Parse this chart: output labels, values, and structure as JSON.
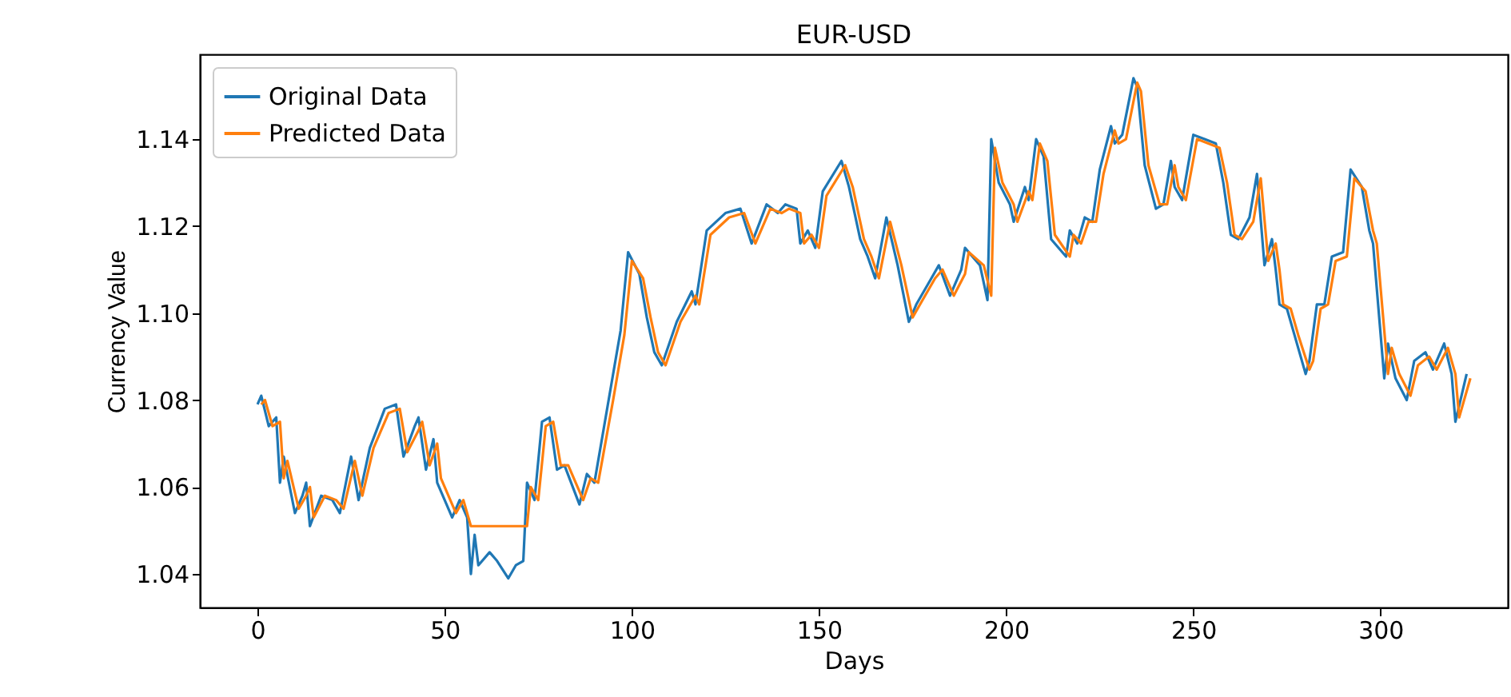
{
  "chart_data": {
    "type": "line",
    "title": "EUR-USD",
    "xlabel": "Days",
    "ylabel": "Currency Value",
    "xlim": [
      -15.4,
      334
    ],
    "ylim": [
      1.0323,
      1.1595
    ],
    "xticks": [
      0,
      50,
      100,
      150,
      200,
      250,
      300
    ],
    "yticks": [
      1.04,
      1.06,
      1.08,
      {
        "value": 1.1,
        "label": "1.10"
      },
      1.12,
      1.14
    ],
    "grid": false,
    "legend": "top left",
    "marker": "none",
    "line_style": "solid",
    "series": [
      {
        "name": "Original Data",
        "color": "#1f77b4",
        "x": [
          0,
          1,
          3,
          5,
          6,
          7,
          10,
          12,
          13,
          14,
          17,
          20,
          22,
          25,
          27,
          30,
          34,
          37,
          39,
          42,
          43,
          45,
          47,
          48,
          52,
          54,
          56,
          57,
          58,
          59,
          62,
          64,
          67,
          69,
          71,
          72,
          74,
          76,
          78,
          80,
          82,
          86,
          88,
          90,
          94,
          97,
          99,
          102,
          104,
          106,
          108,
          112,
          116,
          117,
          120,
          125,
          129,
          132,
          136,
          139,
          141,
          144,
          145,
          147,
          149,
          151,
          156,
          158,
          161,
          163,
          165,
          168,
          171,
          174,
          176,
          180,
          182,
          185,
          188,
          189,
          193,
          195,
          196,
          198,
          201,
          202,
          205,
          206,
          208,
          210,
          212,
          216,
          217,
          219,
          221,
          223,
          225,
          228,
          229,
          231,
          234,
          235,
          237,
          240,
          242,
          244,
          245,
          247,
          250,
          253,
          256,
          258,
          260,
          262,
          265,
          267,
          269,
          271,
          272,
          273,
          275,
          277,
          280,
          281,
          283,
          285,
          287,
          290,
          292,
          295,
          297,
          298,
          301,
          302,
          304,
          307,
          309,
          312,
          314,
          317,
          319,
          320,
          323
        ],
        "values": [
          1.079,
          1.081,
          1.074,
          1.076,
          1.061,
          1.067,
          1.054,
          1.058,
          1.061,
          1.051,
          1.058,
          1.057,
          1.054,
          1.067,
          1.057,
          1.069,
          1.078,
          1.079,
          1.067,
          1.074,
          1.076,
          1.064,
          1.071,
          1.061,
          1.053,
          1.057,
          1.053,
          1.04,
          1.049,
          1.042,
          1.045,
          1.043,
          1.039,
          1.042,
          1.043,
          1.061,
          1.057,
          1.075,
          1.076,
          1.064,
          1.065,
          1.056,
          1.063,
          1.061,
          1.081,
          1.096,
          1.114,
          1.109,
          1.099,
          1.091,
          1.088,
          1.098,
          1.105,
          1.102,
          1.119,
          1.123,
          1.124,
          1.116,
          1.125,
          1.123,
          1.125,
          1.124,
          1.116,
          1.119,
          1.115,
          1.128,
          1.135,
          1.129,
          1.117,
          1.113,
          1.108,
          1.122,
          1.111,
          1.098,
          1.102,
          1.108,
          1.111,
          1.104,
          1.11,
          1.115,
          1.111,
          1.103,
          1.14,
          1.13,
          1.125,
          1.121,
          1.129,
          1.126,
          1.14,
          1.136,
          1.117,
          1.113,
          1.119,
          1.116,
          1.122,
          1.121,
          1.133,
          1.143,
          1.139,
          1.141,
          1.154,
          1.152,
          1.134,
          1.124,
          1.125,
          1.135,
          1.129,
          1.126,
          1.141,
          1.14,
          1.139,
          1.13,
          1.118,
          1.117,
          1.122,
          1.132,
          1.111,
          1.117,
          1.11,
          1.102,
          1.101,
          1.095,
          1.086,
          1.089,
          1.102,
          1.102,
          1.113,
          1.114,
          1.133,
          1.129,
          1.119,
          1.116,
          1.085,
          1.093,
          1.085,
          1.08,
          1.089,
          1.091,
          1.087,
          1.093,
          1.086,
          1.075,
          1.086
        ]
      },
      {
        "name": "Predicted Data",
        "color": "#ff7f0e",
        "x": [
          1,
          2,
          4,
          6,
          7,
          8,
          11,
          13,
          14,
          15,
          18,
          21,
          23,
          26,
          28,
          31,
          35,
          38,
          40,
          43,
          44,
          46,
          48,
          49,
          53,
          55,
          57,
          72,
          73,
          75,
          77,
          79,
          81,
          83,
          87,
          89,
          91,
          95,
          98,
          100,
          103,
          105,
          107,
          109,
          113,
          117,
          118,
          121,
          126,
          130,
          133,
          137,
          140,
          142,
          145,
          146,
          148,
          150,
          152,
          157,
          159,
          162,
          164,
          166,
          169,
          172,
          175,
          177,
          181,
          183,
          186,
          189,
          190,
          194,
          196,
          197,
          199,
          202,
          203,
          206,
          207,
          209,
          211,
          213,
          217,
          218,
          220,
          222,
          224,
          226,
          229,
          230,
          232,
          235,
          236,
          238,
          241,
          243,
          245,
          246,
          248,
          251,
          254,
          257,
          259,
          261,
          263,
          266,
          268,
          270,
          272,
          273,
          274,
          276,
          278,
          281,
          282,
          284,
          286,
          288,
          291,
          293,
          296,
          298,
          299,
          302,
          303,
          305,
          308,
          310,
          313,
          315,
          318,
          320,
          321,
          324
        ],
        "values": [
          1.079,
          1.08,
          1.074,
          1.075,
          1.062,
          1.066,
          1.055,
          1.058,
          1.06,
          1.053,
          1.058,
          1.057,
          1.055,
          1.066,
          1.058,
          1.069,
          1.077,
          1.078,
          1.068,
          1.073,
          1.075,
          1.065,
          1.07,
          1.062,
          1.054,
          1.057,
          1.051,
          1.051,
          1.06,
          1.057,
          1.074,
          1.075,
          1.065,
          1.065,
          1.057,
          1.062,
          1.061,
          1.08,
          1.095,
          1.112,
          1.108,
          1.099,
          1.091,
          1.088,
          1.098,
          1.104,
          1.102,
          1.118,
          1.122,
          1.123,
          1.116,
          1.124,
          1.123,
          1.124,
          1.123,
          1.116,
          1.118,
          1.115,
          1.127,
          1.134,
          1.129,
          1.117,
          1.113,
          1.108,
          1.121,
          1.111,
          1.099,
          1.102,
          1.108,
          1.11,
          1.104,
          1.109,
          1.114,
          1.111,
          1.104,
          1.138,
          1.13,
          1.125,
          1.121,
          1.128,
          1.126,
          1.139,
          1.135,
          1.118,
          1.113,
          1.118,
          1.116,
          1.121,
          1.121,
          1.132,
          1.142,
          1.139,
          1.14,
          1.153,
          1.151,
          1.134,
          1.125,
          1.125,
          1.134,
          1.129,
          1.126,
          1.14,
          1.139,
          1.138,
          1.13,
          1.118,
          1.117,
          1.121,
          1.131,
          1.112,
          1.116,
          1.11,
          1.102,
          1.101,
          1.095,
          1.087,
          1.089,
          1.101,
          1.102,
          1.112,
          1.113,
          1.131,
          1.128,
          1.119,
          1.116,
          1.086,
          1.092,
          1.086,
          1.081,
          1.088,
          1.09,
          1.087,
          1.092,
          1.086,
          1.076,
          1.085
        ]
      }
    ]
  }
}
